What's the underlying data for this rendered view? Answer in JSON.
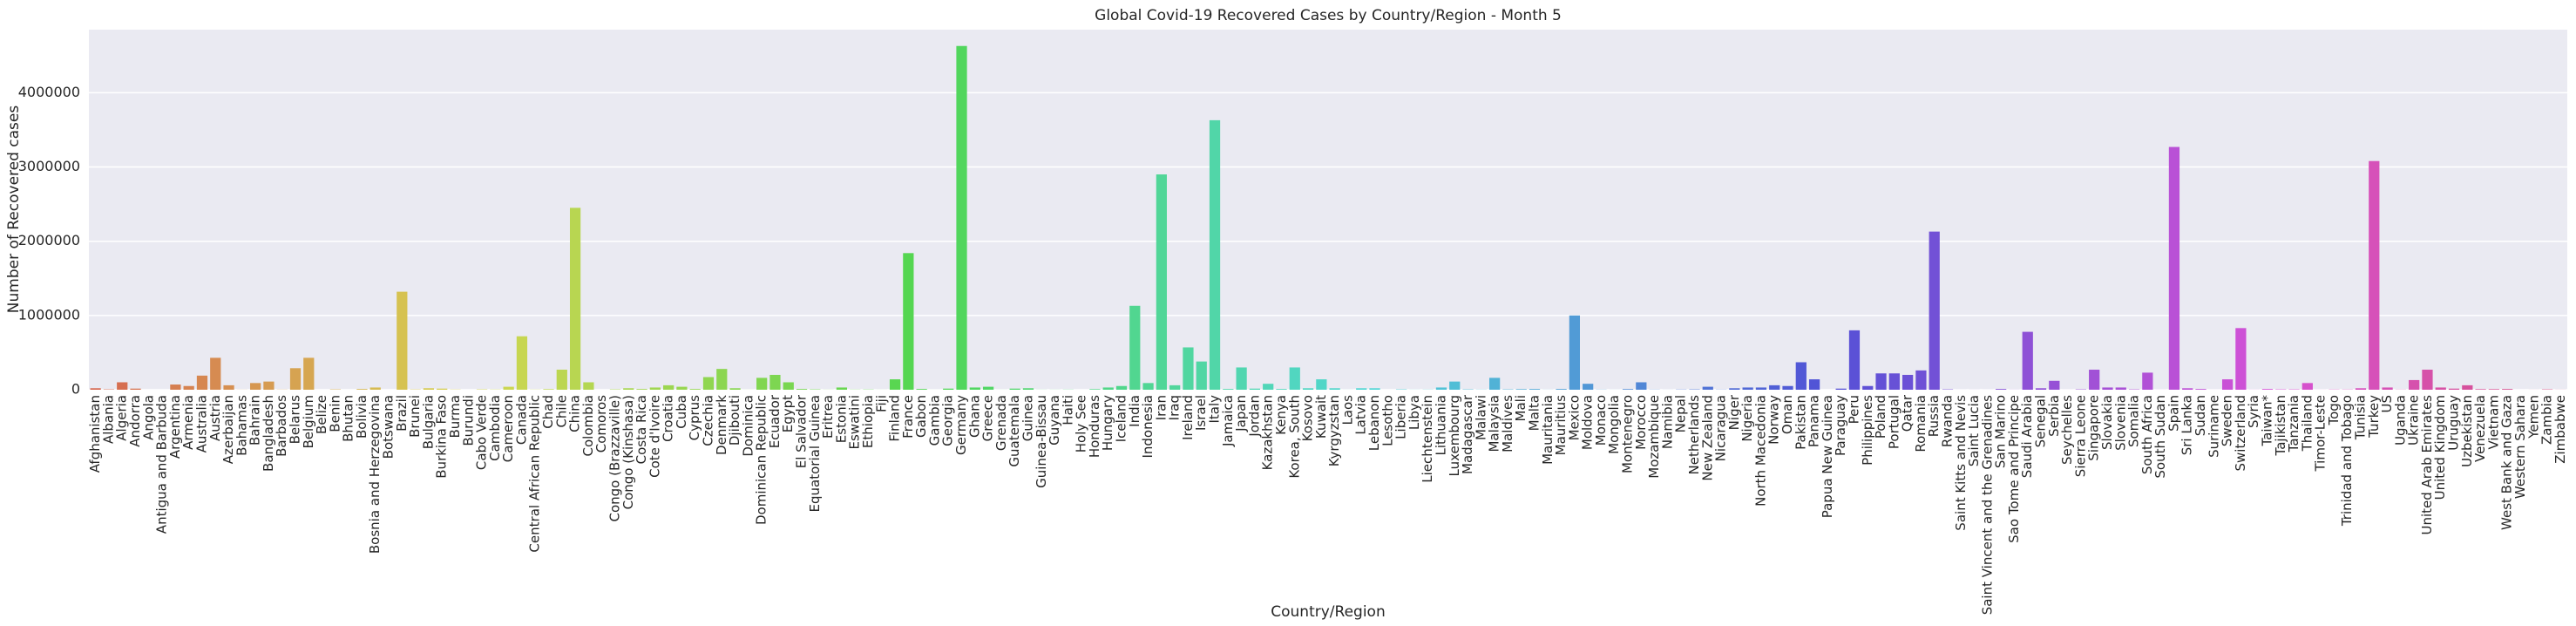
{
  "chart_data": {
    "type": "bar",
    "title": "Global Covid-19 Recovered Cases by Country/Region - Month 5",
    "x_label": "Country/Region",
    "y_label": "Number of Recovered cases",
    "categories": [
      "Afghanistan",
      "Albania",
      "Algeria",
      "Andorra",
      "Angola",
      "Antigua and Barbuda",
      "Argentina",
      "Armenia",
      "Australia",
      "Austria",
      "Azerbaijan",
      "Bahamas",
      "Bahrain",
      "Bangladesh",
      "Barbados",
      "Belarus",
      "Belgium",
      "Belize",
      "Benin",
      "Bhutan",
      "Bolivia",
      "Bosnia and Herzegovina",
      "Botswana",
      "Brazil",
      "Brunei",
      "Bulgaria",
      "Burkina Faso",
      "Burma",
      "Burundi",
      "Cabo Verde",
      "Cambodia",
      "Cameroon",
      "Canada",
      "Central African Republic",
      "Chad",
      "Chile",
      "China",
      "Colombia",
      "Comoros",
      "Congo (Brazzaville)",
      "Congo (Kinshasa)",
      "Costa Rica",
      "Cote d'Ivoire",
      "Croatia",
      "Cuba",
      "Cyprus",
      "Czechia",
      "Denmark",
      "Djibouti",
      "Dominica",
      "Dominican Republic",
      "Ecuador",
      "Egypt",
      "El Salvador",
      "Equatorial Guinea",
      "Eritrea",
      "Estonia",
      "Eswatini",
      "Ethiopia",
      "Fiji",
      "Finland",
      "France",
      "Gabon",
      "Gambia",
      "Georgia",
      "Germany",
      "Ghana",
      "Greece",
      "Grenada",
      "Guatemala",
      "Guinea",
      "Guinea-Bissau",
      "Guyana",
      "Haiti",
      "Holy See",
      "Honduras",
      "Hungary",
      "Iceland",
      "India",
      "Indonesia",
      "Iran",
      "Iraq",
      "Ireland",
      "Israel",
      "Italy",
      "Jamaica",
      "Japan",
      "Jordan",
      "Kazakhstan",
      "Kenya",
      "Korea, South",
      "Kosovo",
      "Kuwait",
      "Kyrgyzstan",
      "Laos",
      "Latvia",
      "Lebanon",
      "Lesotho",
      "Liberia",
      "Libya",
      "Liechtenstein",
      "Lithuania",
      "Luxembourg",
      "Madagascar",
      "Malawi",
      "Malaysia",
      "Maldives",
      "Mali",
      "Malta",
      "Mauritania",
      "Mauritius",
      "Mexico",
      "Moldova",
      "Monaco",
      "Mongolia",
      "Montenegro",
      "Morocco",
      "Mozambique",
      "Namibia",
      "Nepal",
      "Netherlands",
      "New Zealand",
      "Nicaragua",
      "Niger",
      "Nigeria",
      "North Macedonia",
      "Norway",
      "Oman",
      "Pakistan",
      "Panama",
      "Papua New Guinea",
      "Paraguay",
      "Peru",
      "Philippines",
      "Poland",
      "Portugal",
      "Qatar",
      "Romania",
      "Russia",
      "Rwanda",
      "Saint Kitts and Nevis",
      "Saint Lucia",
      "Saint Vincent and the Grenadines",
      "San Marino",
      "Sao Tome and Principe",
      "Saudi Arabia",
      "Senegal",
      "Serbia",
      "Seychelles",
      "Sierra Leone",
      "Singapore",
      "Slovakia",
      "Slovenia",
      "Somalia",
      "South Africa",
      "South Sudan",
      "Spain",
      "Sri Lanka",
      "Sudan",
      "Suriname",
      "Sweden",
      "Switzerland",
      "Syria",
      "Taiwan*",
      "Tajikistan",
      "Tanzania",
      "Thailand",
      "Timor-Leste",
      "Togo",
      "Trinidad and Tobago",
      "Tunisia",
      "Turkey",
      "US",
      "Uganda",
      "Ukraine",
      "United Arab Emirates",
      "United Kingdom",
      "Uruguay",
      "Uzbekistan",
      "Venezuela",
      "Vietnam",
      "West Bank and Gaza",
      "Western Sahara",
      "Yemen",
      "Zambia",
      "Zimbabwe"
    ],
    "values": [
      20000,
      5000,
      100000,
      15000,
      0,
      0,
      70000,
      50000,
      190000,
      430000,
      60000,
      1000,
      90000,
      110000,
      2000,
      290000,
      430000,
      0,
      5000,
      0,
      10000,
      30000,
      0,
      1320000,
      4000,
      20000,
      15000,
      3000,
      0,
      5000,
      3000,
      40000,
      720000,
      2000,
      8000,
      270000,
      2450000,
      100000,
      0,
      5000,
      20000,
      10000,
      30000,
      60000,
      40000,
      10000,
      170000,
      280000,
      20000,
      500,
      160000,
      200000,
      100000,
      10000,
      5000,
      1000,
      30000,
      2000,
      3000,
      500,
      140000,
      1840000,
      10000,
      300,
      15000,
      4630000,
      30000,
      40000,
      500,
      15000,
      20000,
      1000,
      1000,
      2000,
      0,
      8000,
      30000,
      50000,
      1130000,
      90000,
      2900000,
      60000,
      570000,
      380000,
      3630000,
      10000,
      300000,
      15000,
      80000,
      10000,
      300000,
      20000,
      140000,
      20000,
      500,
      20000,
      20000,
      0,
      5000,
      1000,
      2000,
      30000,
      110000,
      5000,
      2000,
      160000,
      5000,
      8000,
      10000,
      1000,
      10000,
      1000000,
      80000,
      2000,
      500,
      9000,
      100000,
      2000,
      500,
      3000,
      5000,
      40000,
      2000,
      20000,
      30000,
      30000,
      60000,
      50000,
      370000,
      140000,
      0,
      15000,
      800000,
      50000,
      220000,
      220000,
      200000,
      260000,
      2130000,
      5000,
      300,
      500,
      300,
      10000,
      1000,
      780000,
      20000,
      120000,
      300,
      5000,
      270000,
      30000,
      30000,
      5000,
      230000,
      500,
      3270000,
      20000,
      10000,
      300,
      140000,
      830000,
      1000,
      10000,
      5000,
      5000,
      90000,
      500,
      3000,
      3000,
      20000,
      3080000,
      30000,
      2000,
      130000,
      270000,
      30000,
      15000,
      60000,
      8000,
      8000,
      10000,
      100,
      500,
      5000,
      1000
    ],
    "palette": "husl",
    "ylim": [
      0,
      4850000
    ],
    "yticks": [
      0,
      1000000,
      2000000,
      3000000,
      4000000
    ],
    "grid": true
  }
}
